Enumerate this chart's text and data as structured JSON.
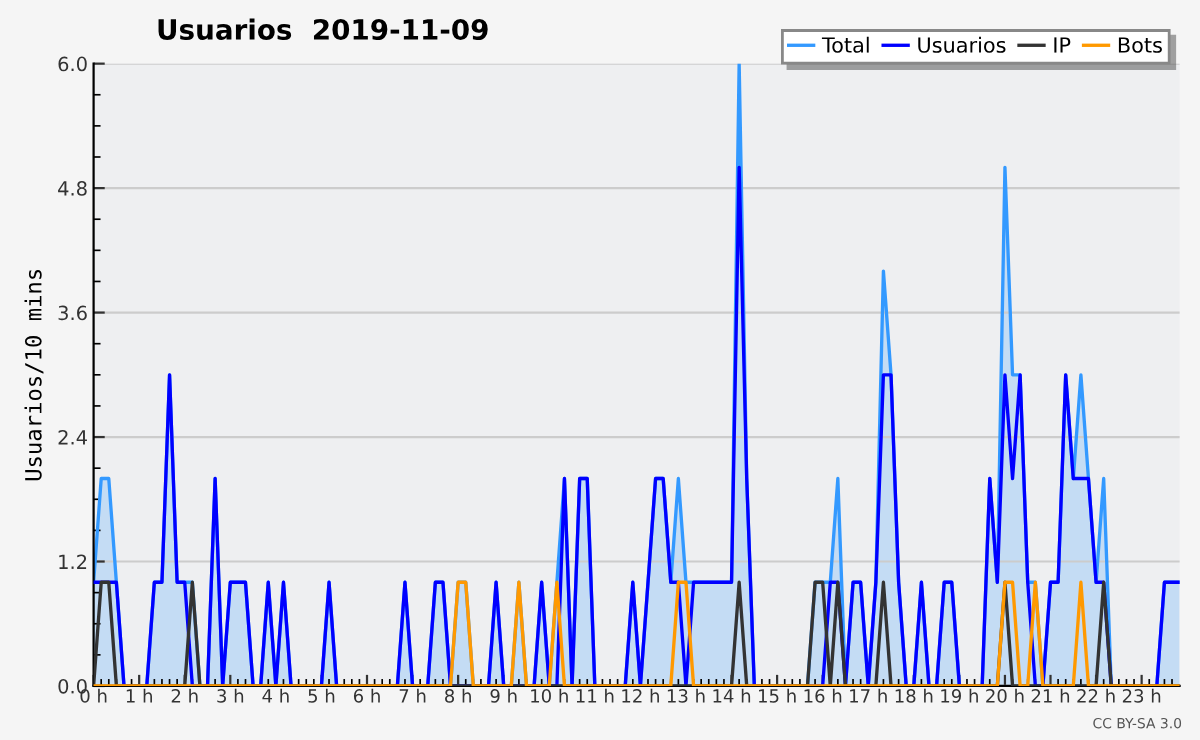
{
  "chart_data": {
    "type": "line",
    "title": "Usuarios  2019-11-09",
    "ylabel": "Usuarios/10 mins",
    "annotations": [
      "CC BY-SA 3.0"
    ],
    "x": [
      0,
      0.167,
      0.333,
      0.5,
      0.667,
      0.833,
      1,
      1.167,
      1.333,
      1.5,
      1.667,
      1.833,
      2,
      2.167,
      2.333,
      2.5,
      2.667,
      2.833,
      3,
      3.167,
      3.333,
      3.5,
      3.667,
      3.833,
      4,
      4.167,
      4.333,
      4.5,
      4.667,
      4.833,
      5,
      5.167,
      5.333,
      5.5,
      5.667,
      5.833,
      6,
      6.167,
      6.333,
      6.5,
      6.667,
      6.833,
      7,
      7.167,
      7.333,
      7.5,
      7.667,
      7.833,
      8,
      8.167,
      8.333,
      8.5,
      8.667,
      8.833,
      9,
      9.167,
      9.333,
      9.5,
      9.667,
      9.833,
      10,
      10.167,
      10.333,
      10.5,
      10.667,
      10.833,
      11,
      11.167,
      11.333,
      11.5,
      11.667,
      11.833,
      12,
      12.167,
      12.333,
      12.5,
      12.667,
      12.833,
      13,
      13.167,
      13.333,
      13.5,
      13.667,
      13.833,
      14,
      14.167,
      14.333,
      14.5,
      14.667,
      14.833,
      15,
      15.167,
      15.333,
      15.5,
      15.667,
      15.833,
      16,
      16.167,
      16.333,
      16.5,
      16.667,
      16.833,
      17,
      17.167,
      17.333,
      17.5,
      17.667,
      17.833,
      18,
      18.167,
      18.333,
      18.5,
      18.667,
      18.833,
      19,
      19.167,
      19.333,
      19.5,
      19.667,
      19.833,
      20,
      20.167,
      20.333,
      20.5,
      20.667,
      20.833,
      21,
      21.167,
      21.333,
      21.5,
      21.667,
      21.833,
      22,
      22.167,
      22.333,
      22.5,
      22.667,
      22.833,
      23,
      23.167,
      23.333,
      23.5,
      23.667,
      23.833
    ],
    "series": [
      {
        "name": "Total",
        "type": "area",
        "color": "#3399ff",
        "values": [
          1,
          2,
          2,
          1,
          0,
          0,
          0,
          0,
          1,
          1,
          3,
          1,
          1,
          1,
          0,
          0,
          2,
          0,
          1,
          1,
          1,
          0,
          0,
          1,
          0,
          1,
          0,
          0,
          0,
          0,
          0,
          1,
          0,
          0,
          0,
          0,
          0,
          0,
          0,
          0,
          0,
          1,
          0,
          0,
          0,
          1,
          1,
          0,
          1,
          1,
          0,
          0,
          0,
          1,
          0,
          0,
          1,
          0,
          0,
          1,
          0,
          1,
          2,
          0,
          2,
          2,
          0,
          0,
          0,
          0,
          0,
          1,
          0,
          1,
          2,
          2,
          1,
          2,
          1,
          1,
          1,
          1,
          1,
          1,
          1,
          6,
          2,
          0,
          0,
          0,
          0,
          0,
          0,
          0,
          0,
          1,
          1,
          1,
          2,
          0,
          1,
          1,
          0,
          1,
          4,
          3,
          1,
          0,
          0,
          1,
          0,
          0,
          1,
          1,
          0,
          0,
          0,
          0,
          2,
          1,
          5,
          3,
          3,
          1,
          1,
          0,
          1,
          1,
          3,
          2,
          3,
          2,
          1,
          2,
          0,
          0,
          0,
          0,
          0,
          0,
          0,
          1,
          1,
          1
        ]
      },
      {
        "name": "Usuarios",
        "color": "#0000ff",
        "values": [
          1,
          1,
          1,
          1,
          0,
          0,
          0,
          0,
          1,
          1,
          3,
          1,
          1,
          0,
          0,
          0,
          2,
          0,
          1,
          1,
          1,
          0,
          0,
          1,
          0,
          1,
          0,
          0,
          0,
          0,
          0,
          1,
          0,
          0,
          0,
          0,
          0,
          0,
          0,
          0,
          0,
          1,
          0,
          0,
          0,
          1,
          1,
          0,
          0,
          0,
          0,
          0,
          0,
          1,
          0,
          0,
          0,
          0,
          0,
          1,
          0,
          0,
          2,
          0,
          2,
          2,
          0,
          0,
          0,
          0,
          0,
          1,
          0,
          1,
          2,
          2,
          1,
          1,
          0,
          1,
          1,
          1,
          1,
          1,
          1,
          5,
          2,
          0,
          0,
          0,
          0,
          0,
          0,
          0,
          0,
          0,
          0,
          1,
          1,
          0,
          1,
          1,
          0,
          1,
          3,
          3,
          1,
          0,
          0,
          1,
          0,
          0,
          1,
          1,
          0,
          0,
          0,
          0,
          2,
          1,
          3,
          2,
          3,
          1,
          0,
          0,
          1,
          1,
          3,
          2,
          2,
          2,
          1,
          1,
          0,
          0,
          0,
          0,
          0,
          0,
          0,
          1,
          1,
          1
        ]
      },
      {
        "name": "IP",
        "color": "#333333",
        "values": [
          0,
          1,
          1,
          0,
          0,
          0,
          0,
          0,
          0,
          0,
          0,
          0,
          0,
          1,
          0,
          0,
          0,
          0,
          0,
          0,
          0,
          0,
          0,
          0,
          0,
          0,
          0,
          0,
          0,
          0,
          0,
          0,
          0,
          0,
          0,
          0,
          0,
          0,
          0,
          0,
          0,
          0,
          0,
          0,
          0,
          0,
          0,
          0,
          0,
          0,
          0,
          0,
          0,
          0,
          0,
          0,
          0,
          0,
          0,
          0,
          0,
          0,
          0,
          0,
          0,
          0,
          0,
          0,
          0,
          0,
          0,
          0,
          0,
          0,
          0,
          0,
          0,
          0,
          0,
          0,
          0,
          0,
          0,
          0,
          0,
          1,
          0,
          0,
          0,
          0,
          0,
          0,
          0,
          0,
          0,
          1,
          1,
          0,
          1,
          0,
          0,
          0,
          0,
          0,
          1,
          0,
          0,
          0,
          0,
          0,
          0,
          0,
          0,
          0,
          0,
          0,
          0,
          0,
          0,
          0,
          1,
          0,
          0,
          0,
          0,
          0,
          0,
          0,
          0,
          0,
          0,
          0,
          0,
          1,
          0,
          0,
          0,
          0,
          0,
          0,
          0,
          0,
          0,
          0
        ]
      },
      {
        "name": "Bots",
        "color": "#ff9900",
        "values": [
          0,
          0,
          0,
          0,
          0,
          0,
          0,
          0,
          0,
          0,
          0,
          0,
          0,
          0,
          0,
          0,
          0,
          0,
          0,
          0,
          0,
          0,
          0,
          0,
          0,
          0,
          0,
          0,
          0,
          0,
          0,
          0,
          0,
          0,
          0,
          0,
          0,
          0,
          0,
          0,
          0,
          0,
          0,
          0,
          0,
          0,
          0,
          0,
          1,
          1,
          0,
          0,
          0,
          0,
          0,
          0,
          1,
          0,
          0,
          0,
          0,
          1,
          0,
          0,
          0,
          0,
          0,
          0,
          0,
          0,
          0,
          0,
          0,
          0,
          0,
          0,
          0,
          1,
          1,
          0,
          0,
          0,
          0,
          0,
          0,
          0,
          0,
          0,
          0,
          0,
          0,
          0,
          0,
          0,
          0,
          0,
          0,
          0,
          0,
          0,
          0,
          0,
          0,
          0,
          0,
          0,
          0,
          0,
          0,
          0,
          0,
          0,
          0,
          0,
          0,
          0,
          0,
          0,
          0,
          0,
          1,
          1,
          0,
          0,
          1,
          0,
          0,
          0,
          0,
          0,
          1,
          0,
          0,
          0,
          0,
          0,
          0,
          0,
          0,
          0,
          0,
          0,
          0,
          0
        ]
      }
    ],
    "xlim": [
      0,
      23.833
    ],
    "xticks": [
      {
        "value": 0,
        "label": "0 h"
      },
      {
        "value": 1,
        "label": "1 h"
      },
      {
        "value": 2,
        "label": "2 h"
      },
      {
        "value": 3,
        "label": "3 h"
      },
      {
        "value": 4,
        "label": "4 h"
      },
      {
        "value": 5,
        "label": "5 h"
      },
      {
        "value": 6,
        "label": "6 h"
      },
      {
        "value": 7,
        "label": "7 h"
      },
      {
        "value": 8,
        "label": "8 h"
      },
      {
        "value": 9,
        "label": "9 h"
      },
      {
        "value": 10,
        "label": "10 h"
      },
      {
        "value": 11,
        "label": "11 h"
      },
      {
        "value": 12,
        "label": "12 h"
      },
      {
        "value": 13,
        "label": "13 h"
      },
      {
        "value": 14,
        "label": "14 h"
      },
      {
        "value": 15,
        "label": "15 h"
      },
      {
        "value": 16,
        "label": "16 h"
      },
      {
        "value": 17,
        "label": "17 h"
      },
      {
        "value": 18,
        "label": "18 h"
      },
      {
        "value": 19,
        "label": "19 h"
      },
      {
        "value": 20,
        "label": "20 h"
      },
      {
        "value": 21,
        "label": "21 h"
      },
      {
        "value": 22,
        "label": "22 h"
      },
      {
        "value": 23,
        "label": "23 h"
      }
    ],
    "ylim": [
      0,
      6
    ],
    "yticks": [
      {
        "value": 0,
        "label": "0.0"
      },
      {
        "value": 1.2,
        "label": "1.2"
      },
      {
        "value": 2.4,
        "label": "2.4"
      },
      {
        "value": 3.6,
        "label": "3.6"
      },
      {
        "value": 4.8,
        "label": "4.8"
      },
      {
        "value": 6,
        "label": "6.0"
      }
    ],
    "grid": "y",
    "legend": "top right",
    "marker": "none",
    "line_style": "solid"
  }
}
